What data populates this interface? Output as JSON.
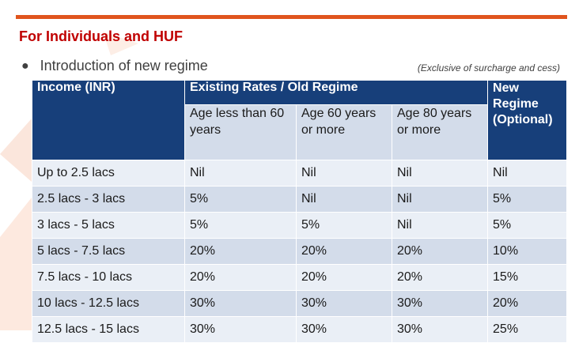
{
  "section_title": "For Individuals and HUF",
  "bullet": "Introduction of new regime",
  "note": "(Exclusive of surcharge and cess)",
  "table": {
    "header_income": "Income (INR)",
    "header_existing": "Existing Rates / Old Regime",
    "header_new": "New Regime (Optional)",
    "sub_headers": [
      "Age less than 60 years",
      "Age 60 years or more",
      "Age 80 years or more"
    ],
    "rows": [
      [
        "Up to 2.5 lacs",
        "Nil",
        "Nil",
        "Nil",
        "Nil"
      ],
      [
        "2.5 lacs - 3 lacs",
        "5%",
        "Nil",
        "Nil",
        "5%"
      ],
      [
        "3 lacs - 5 lacs",
        "5%",
        "5%",
        "Nil",
        "5%"
      ],
      [
        "5 lacs - 7.5 lacs",
        "20%",
        "20%",
        "20%",
        "10%"
      ],
      [
        "7.5 lacs - 10 lacs",
        "20%",
        "20%",
        "20%",
        "15%"
      ],
      [
        "10 lacs - 12.5 lacs",
        "30%",
        "30%",
        "30%",
        "20%"
      ],
      [
        "12.5 lacs - 15 lacs",
        "30%",
        "30%",
        "30%",
        "25%"
      ]
    ]
  },
  "colors": {
    "title_red": "#c00000",
    "rule_orange": "#e0541d",
    "header_navy": "#173f7a",
    "band_blue": "#d3dcea",
    "band_light": "#eaeff6"
  }
}
